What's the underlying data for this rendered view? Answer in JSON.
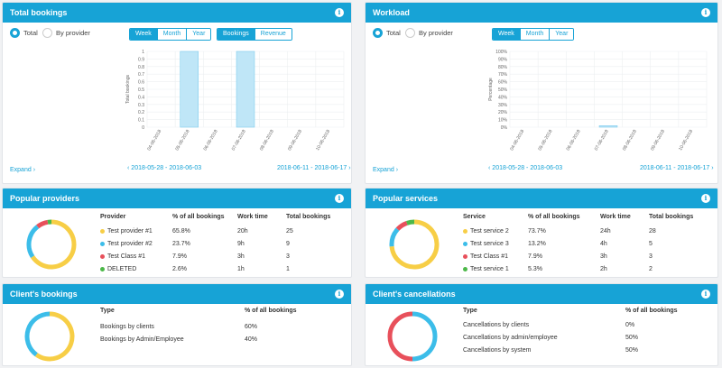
{
  "total_bookings": {
    "title": "Total bookings",
    "radios": [
      "Total",
      "By provider"
    ],
    "period_tabs": [
      "Week",
      "Month",
      "Year"
    ],
    "metric_tabs": [
      "Bookings",
      "Revenue"
    ],
    "expand": "Expand",
    "prev_range": "2018-05-28 - 2018-06-03",
    "next_range": "2018-06-11 - 2018-06-17"
  },
  "workload": {
    "title": "Workload",
    "radios": [
      "Total",
      "By provider"
    ],
    "period_tabs": [
      "Week",
      "Month",
      "Year"
    ],
    "expand": "Expand",
    "prev_range": "2018-05-28 - 2018-06-03",
    "next_range": "2018-06-11 - 2018-06-17"
  },
  "popular_providers": {
    "title": "Popular providers",
    "headers": [
      "Provider",
      "% of all bookings",
      "Work time",
      "Total bookings"
    ],
    "rows": [
      {
        "name": "Test provider #1",
        "pct": "65.8%",
        "work": "20h",
        "total": "25",
        "color": "#f7ce46"
      },
      {
        "name": "Test provider #2",
        "pct": "23.7%",
        "work": "9h",
        "total": "9",
        "color": "#3cbde9"
      },
      {
        "name": "Test Class #1",
        "pct": "7.9%",
        "work": "3h",
        "total": "3",
        "color": "#e8505b"
      },
      {
        "name": "DELETED",
        "pct": "2.6%",
        "work": "1h",
        "total": "1",
        "color": "#4cb849"
      }
    ]
  },
  "popular_services": {
    "title": "Popular services",
    "headers": [
      "Service",
      "% of all bookings",
      "Work time",
      "Total bookings"
    ],
    "rows": [
      {
        "name": "Test service 2",
        "pct": "73.7%",
        "work": "24h",
        "total": "28",
        "color": "#f7ce46"
      },
      {
        "name": "Test service 3",
        "pct": "13.2%",
        "work": "4h",
        "total": "5",
        "color": "#3cbde9"
      },
      {
        "name": "Test Class #1",
        "pct": "7.9%",
        "work": "3h",
        "total": "3",
        "color": "#e8505b"
      },
      {
        "name": "Test service 1",
        "pct": "5.3%",
        "work": "2h",
        "total": "2",
        "color": "#4cb849"
      }
    ]
  },
  "clients_bookings": {
    "title": "Client's bookings",
    "headers": [
      "Type",
      "% of all bookings"
    ],
    "rows": [
      {
        "name": "Bookings by clients",
        "pct": "60%",
        "color": "#f7ce46"
      },
      {
        "name": "Bookings by Admin/Employee",
        "pct": "40%",
        "color": "#3cbde9"
      }
    ]
  },
  "clients_cancellations": {
    "title": "Client's cancellations",
    "headers": [
      "Type",
      "% of all bookings"
    ],
    "rows": [
      {
        "name": "Cancellations by clients",
        "pct": "0%",
        "color": "#f7ce46"
      },
      {
        "name": "Cancellations by admin/employee",
        "pct": "50%",
        "color": "#3cbde9"
      },
      {
        "name": "Cancellations by system",
        "pct": "50%",
        "color": "#e8505b"
      }
    ]
  },
  "chart_data": [
    {
      "type": "bar",
      "ylabel": "Total bookings",
      "categories": [
        "04-06-2018",
        "05-06-2018",
        "06-06-2018",
        "07-06-2018",
        "08-06-2018",
        "09-06-2018",
        "10-06-2018"
      ],
      "values": [
        0,
        1,
        0,
        1,
        0,
        0,
        0
      ],
      "yticks": [
        "0",
        "0.1",
        "0.2",
        "0.3",
        "0.4",
        "0.5",
        "0.6",
        "0.7",
        "0.8",
        "0.9",
        "1"
      ],
      "ylim": [
        0,
        1
      ],
      "color": "#bfe6f7"
    },
    {
      "type": "bar",
      "ylabel": "Percentage",
      "categories": [
        "04-06-2018",
        "05-06-2018",
        "06-06-2018",
        "07-06-2018",
        "08-06-2018",
        "09-06-2018",
        "10-06-2018"
      ],
      "values": [
        0,
        0,
        0,
        2,
        0,
        0,
        0
      ],
      "yticks": [
        "0%",
        "10%",
        "20%",
        "30%",
        "40%",
        "50%",
        "60%",
        "70%",
        "80%",
        "90%",
        "100%"
      ],
      "ylim": [
        0,
        100
      ],
      "color": "#bfe6f7"
    },
    {
      "type": "pie",
      "categories": [
        "Test provider #1",
        "Test provider #2",
        "Test Class #1",
        "DELETED"
      ],
      "values": [
        65.8,
        23.7,
        7.9,
        2.6
      ],
      "colors": [
        "#f7ce46",
        "#3cbde9",
        "#e8505b",
        "#4cb849"
      ]
    },
    {
      "type": "pie",
      "categories": [
        "Test service 2",
        "Test service 3",
        "Test Class #1",
        "Test service 1"
      ],
      "values": [
        73.7,
        13.2,
        7.9,
        5.3
      ],
      "colors": [
        "#f7ce46",
        "#3cbde9",
        "#e8505b",
        "#4cb849"
      ]
    },
    {
      "type": "pie",
      "categories": [
        "Bookings by clients",
        "Bookings by Admin/Employee"
      ],
      "values": [
        60,
        40
      ],
      "colors": [
        "#f7ce46",
        "#3cbde9"
      ]
    },
    {
      "type": "pie",
      "categories": [
        "Cancellations by clients",
        "Cancellations by admin/employee",
        "Cancellations by system"
      ],
      "values": [
        0,
        50,
        50
      ],
      "colors": [
        "#f7ce46",
        "#3cbde9",
        "#e8505b"
      ]
    }
  ]
}
